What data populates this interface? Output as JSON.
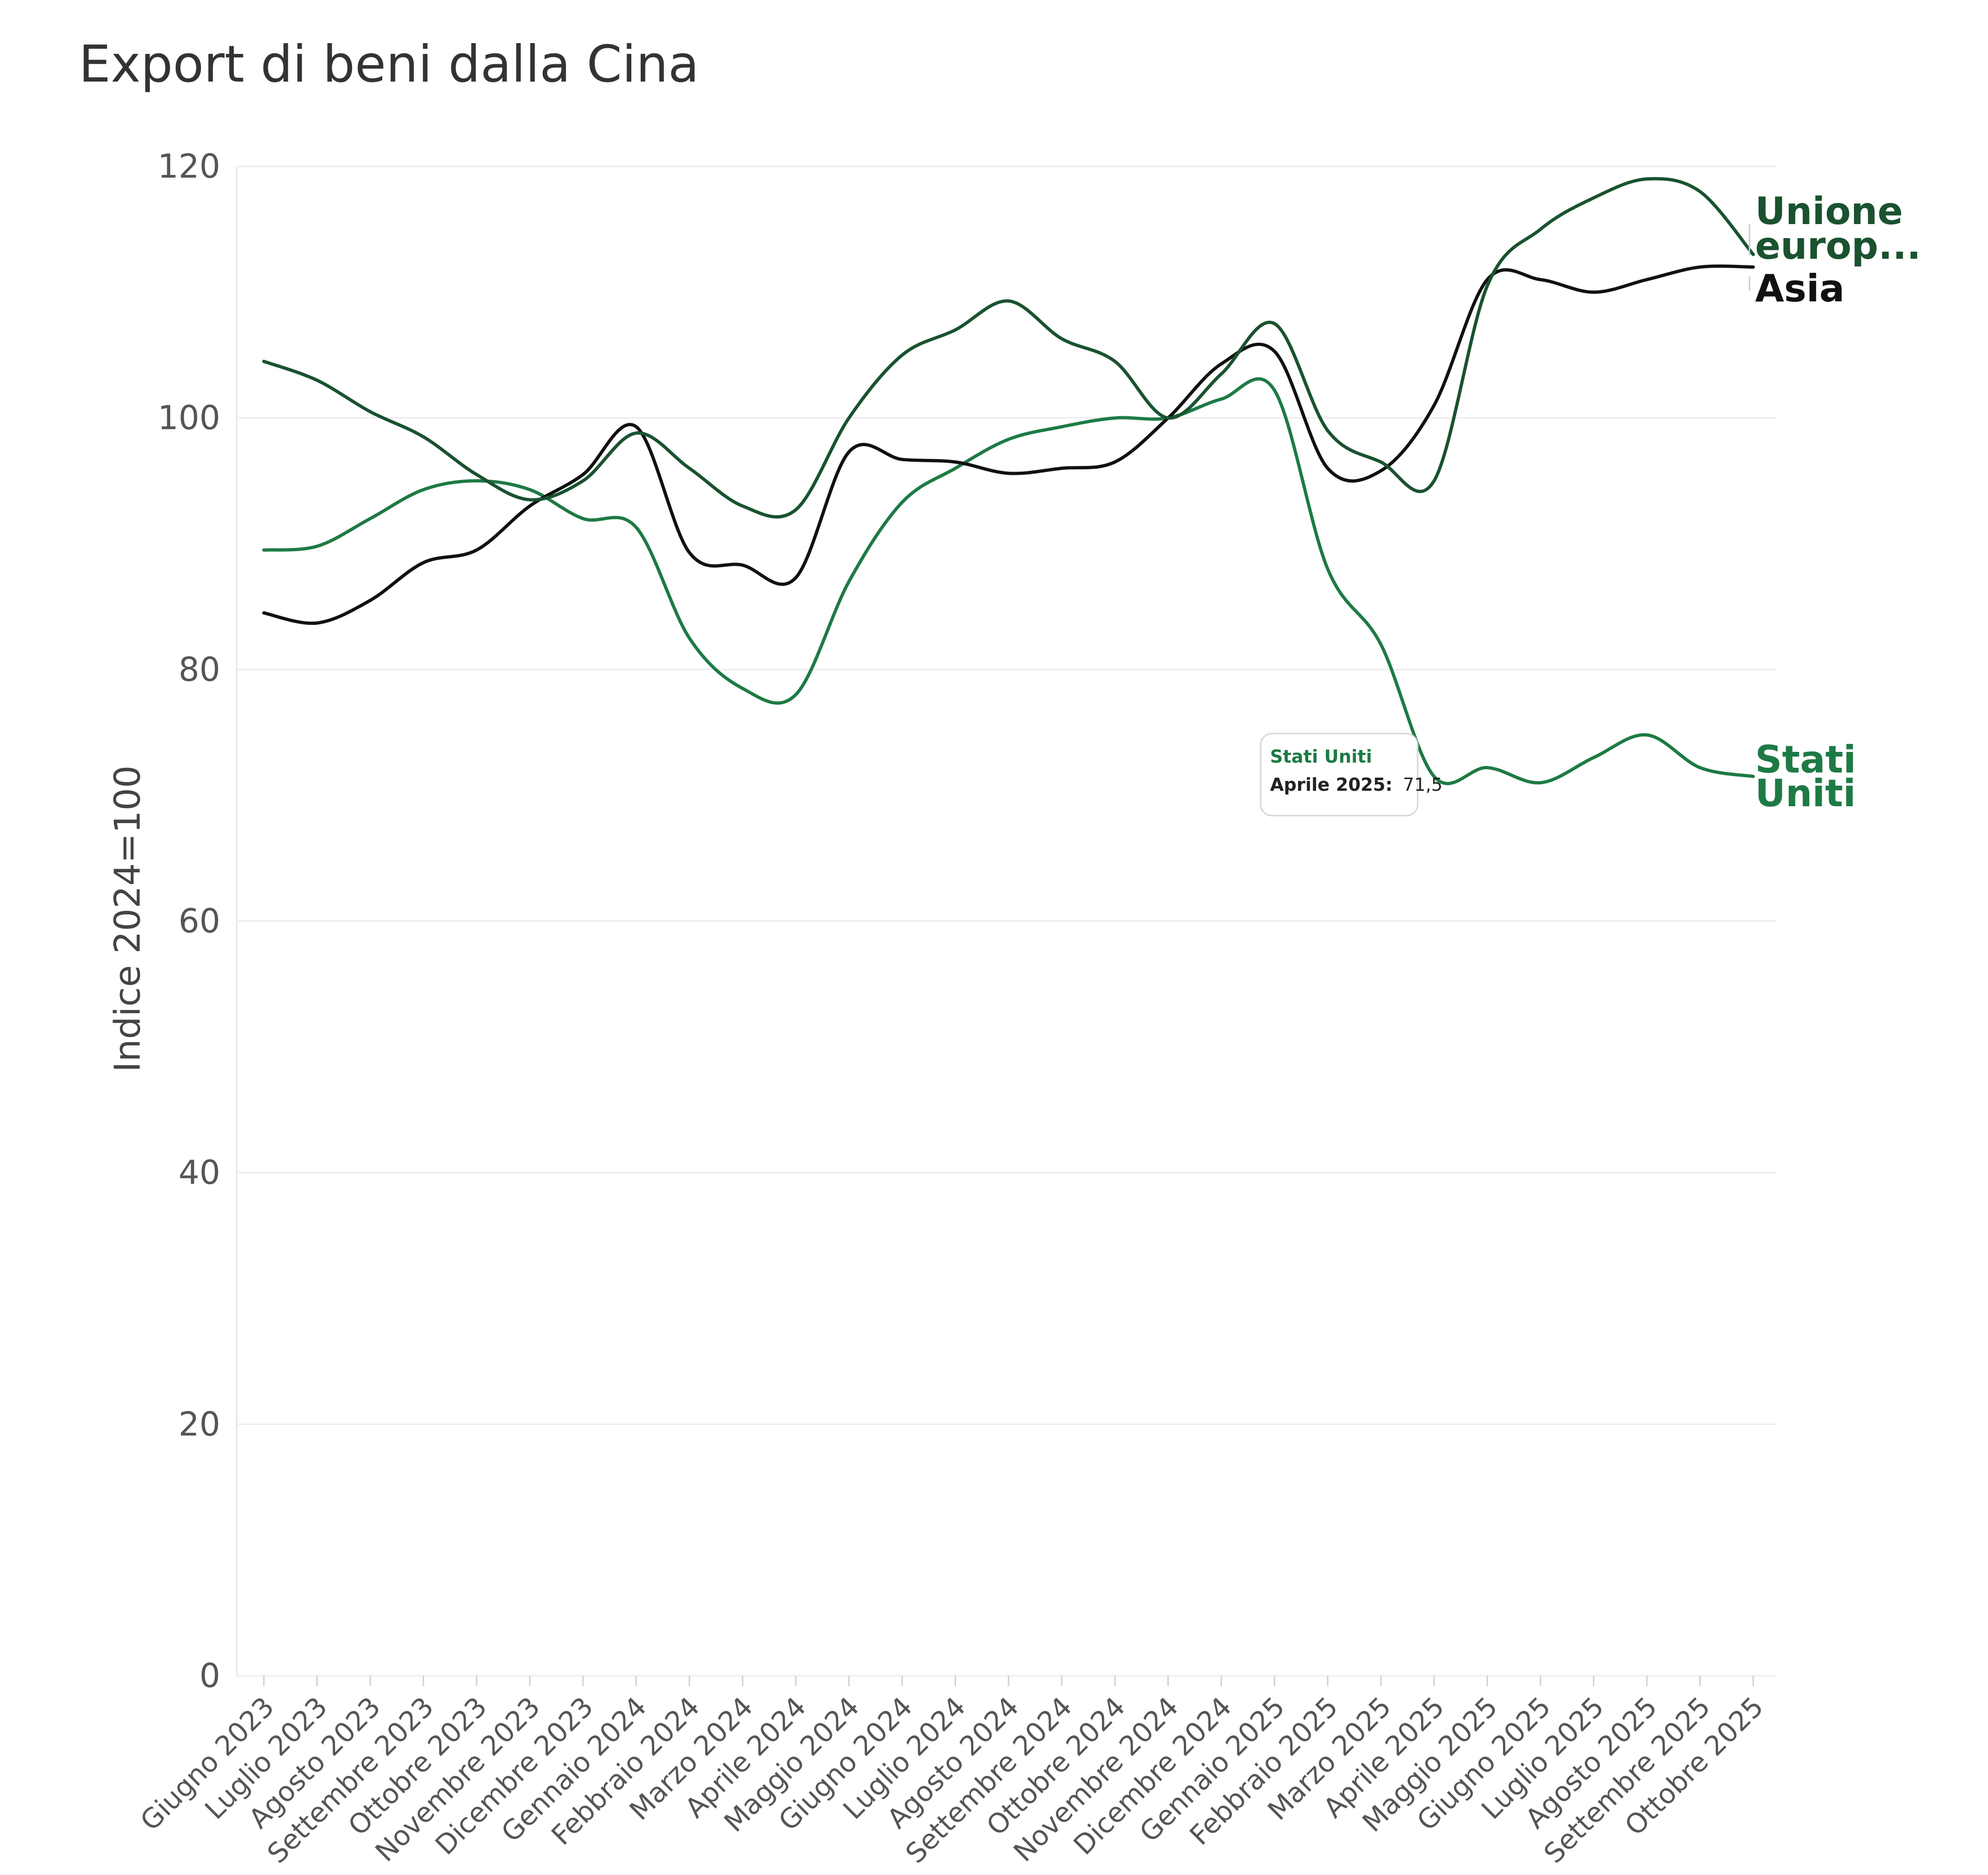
{
  "chart_data": {
    "type": "line",
    "title": "Export di beni dalla Cina",
    "ylabel": "Indice 2024=100",
    "xlabel": "",
    "ylim": [
      0,
      120
    ],
    "yticks": [
      0,
      20,
      40,
      60,
      80,
      100,
      120
    ],
    "grid": true,
    "categories": [
      "Giugno 2023",
      "Luglio 2023",
      "Agosto 2023",
      "Settembre 2023",
      "Ottobre 2023",
      "Novembre 2023",
      "Dicembre 2023",
      "Gennaio 2024",
      "Febbraio 2024",
      "Marzo 2024",
      "Aprile 2024",
      "Maggio 2024",
      "Giugno 2024",
      "Luglio 2024",
      "Agosto 2024",
      "Settembre 2024",
      "Ottobre 2024",
      "Novembre 2024",
      "Dicembre 2024",
      "Gennaio 2025",
      "Febbraio 2025",
      "Marzo 2025",
      "Aprile 2025",
      "Maggio 2025",
      "Giugno 2025",
      "Luglio 2025",
      "Agosto 2025",
      "Settembre 2025",
      "Ottobre 2025"
    ],
    "series": [
      {
        "name": "Unione europ...",
        "color": "#1a5230",
        "values": [
          104.5,
          103,
          100.5,
          98.5,
          95.5,
          93.5,
          95,
          98.8,
          96,
          93,
          92.7,
          100,
          105,
          107,
          109.3,
          106.3,
          104.5,
          100,
          103.5,
          107.5,
          99,
          96.5,
          95,
          110.5,
          115,
          117.5,
          119,
          118,
          113
        ]
      },
      {
        "name": "Asia",
        "color": "#111111",
        "values": [
          84.5,
          83.7,
          85.5,
          88.5,
          89.5,
          93,
          95.5,
          99.3,
          89.3,
          88.3,
          87.3,
          97.3,
          96.7,
          96.5,
          95.6,
          96,
          96.5,
          100,
          104.3,
          105.3,
          96,
          95.8,
          101,
          111,
          111,
          110,
          111,
          112,
          112
        ]
      },
      {
        "name": "Stati Uniti",
        "color": "#1e7a45",
        "values": [
          89.5,
          89.8,
          92,
          94.3,
          95,
          94.3,
          92,
          91.3,
          82.5,
          78.5,
          78,
          87,
          93.3,
          96,
          98.3,
          99.3,
          100,
          100,
          101.5,
          102.2,
          88,
          82,
          71.5,
          72.2,
          71,
          73,
          74.8,
          72.2,
          71.5
        ]
      }
    ],
    "tooltip": {
      "series": "Stati Uniti",
      "label": "Aprile 2025:",
      "value": "71,5"
    }
  }
}
